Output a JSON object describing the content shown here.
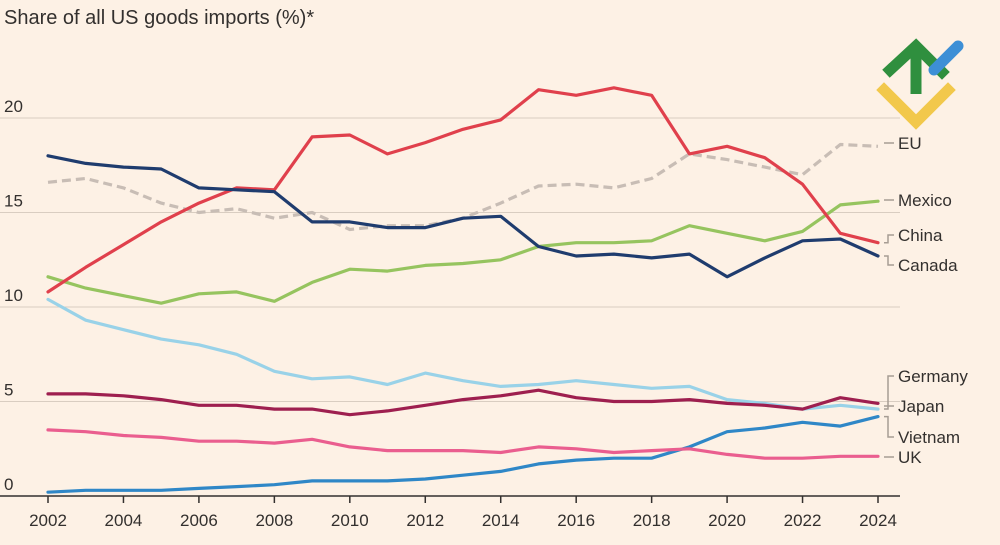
{
  "chart_data": {
    "type": "line",
    "title": "Share of all US goods imports (%)*",
    "xlabel": "",
    "ylabel": "",
    "xlim": [
      2002,
      2024
    ],
    "ylim": [
      0,
      20
    ],
    "x_ticks": [
      "2002",
      "2004",
      "2006",
      "2008",
      "2010",
      "2012",
      "2014",
      "2016",
      "2018",
      "2020",
      "2022",
      "2024"
    ],
    "y_ticks": [
      "0",
      "5",
      "10",
      "15",
      "20"
    ],
    "x": [
      2002,
      2003,
      2004,
      2005,
      2006,
      2007,
      2008,
      2009,
      2010,
      2011,
      2012,
      2013,
      2014,
      2015,
      2016,
      2017,
      2018,
      2019,
      2020,
      2021,
      2022,
      2023,
      2024
    ],
    "series": [
      {
        "name": "EU",
        "color": "#c8bdb5",
        "dashed": true,
        "values": [
          16.6,
          16.8,
          16.3,
          15.5,
          15.0,
          15.2,
          14.7,
          15.0,
          14.1,
          14.3,
          14.3,
          14.7,
          15.5,
          16.4,
          16.5,
          16.3,
          16.8,
          18.1,
          17.8,
          17.4,
          17.0,
          18.6,
          18.5
        ]
      },
      {
        "name": "Mexico",
        "color": "#96c45f",
        "dashed": false,
        "values": [
          11.6,
          11.0,
          10.6,
          10.2,
          10.7,
          10.8,
          10.3,
          11.3,
          12.0,
          11.9,
          12.2,
          12.3,
          12.5,
          13.2,
          13.4,
          13.4,
          13.5,
          14.3,
          13.9,
          13.5,
          14.0,
          15.4,
          15.6
        ]
      },
      {
        "name": "China",
        "color": "#e0404c",
        "dashed": false,
        "values": [
          10.8,
          12.1,
          13.3,
          14.5,
          15.5,
          16.3,
          16.2,
          19.0,
          19.1,
          18.1,
          18.7,
          19.4,
          19.9,
          21.5,
          21.2,
          21.6,
          21.2,
          18.1,
          18.5,
          17.9,
          16.5,
          13.9,
          13.4
        ]
      },
      {
        "name": "Canada",
        "color": "#1f3c6e",
        "dashed": false,
        "values": [
          18.0,
          17.6,
          17.4,
          17.3,
          16.3,
          16.2,
          16.1,
          14.5,
          14.5,
          14.2,
          14.2,
          14.7,
          14.8,
          13.2,
          12.7,
          12.8,
          12.6,
          12.8,
          11.6,
          12.6,
          13.5,
          13.6,
          12.7
        ]
      },
      {
        "name": "Germany",
        "color": "#99d2e8",
        "dashed": false,
        "values": [
          10.4,
          9.3,
          8.8,
          8.3,
          8.0,
          7.5,
          6.6,
          6.2,
          6.3,
          5.9,
          6.5,
          6.1,
          5.8,
          5.9,
          6.1,
          5.9,
          5.7,
          5.8,
          5.1,
          4.9,
          4.6,
          4.8,
          4.6
        ]
      },
      {
        "name": "Japan",
        "color": "#9e1f4f",
        "dashed": false,
        "values": [
          5.4,
          5.4,
          5.3,
          5.1,
          4.8,
          4.8,
          4.6,
          4.6,
          4.3,
          4.5,
          4.8,
          5.1,
          5.3,
          5.6,
          5.2,
          5.0,
          5.0,
          5.1,
          4.9,
          4.8,
          4.6,
          5.2,
          4.9
        ]
      },
      {
        "name": "Vietnam",
        "color": "#2f87c7",
        "dashed": false,
        "values": [
          0.2,
          0.3,
          0.3,
          0.3,
          0.4,
          0.5,
          0.6,
          0.8,
          0.8,
          0.8,
          0.9,
          1.1,
          1.3,
          1.7,
          1.9,
          2.0,
          2.0,
          2.6,
          3.4,
          3.6,
          3.9,
          3.7,
          4.2
        ]
      },
      {
        "name": "UK",
        "color": "#ea5e8f",
        "dashed": false,
        "values": [
          3.5,
          3.4,
          3.2,
          3.1,
          2.9,
          2.9,
          2.8,
          3.0,
          2.6,
          2.4,
          2.4,
          2.4,
          2.3,
          2.6,
          2.5,
          2.3,
          2.4,
          2.5,
          2.2,
          2.0,
          2.0,
          2.1,
          2.1
        ]
      }
    ]
  }
}
